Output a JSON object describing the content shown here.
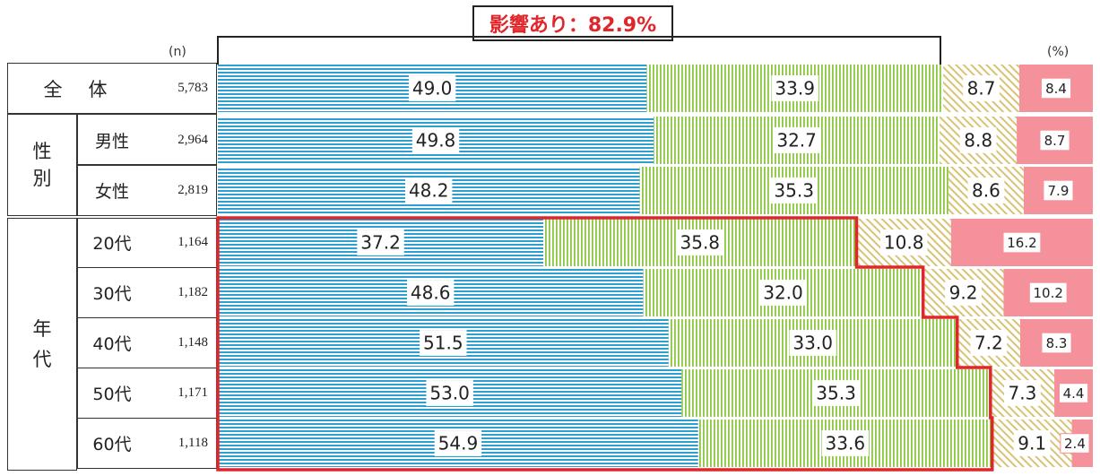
{
  "banner": "影響あり：82.9%",
  "n_header": "(n)",
  "percent_header": "(%)",
  "groups": [
    {
      "label": "全　体",
      "rows": [
        0
      ]
    },
    {
      "label": "性\n別",
      "rows": [
        1,
        2
      ]
    },
    {
      "label": "年\n代",
      "rows": [
        3,
        4,
        5,
        6,
        7
      ]
    }
  ],
  "colors": {
    "seg1": "#2a9fd0",
    "seg2": "#8cc63f",
    "seg3": "#d8c273",
    "seg4": "#f5919a",
    "highlight": "#e0262b"
  },
  "chart_data": {
    "type": "bar",
    "orientation": "horizontal",
    "stacked": true,
    "percent": true,
    "rows": [
      {
        "label": "全　体",
        "n": "5,783",
        "values": [
          49.0,
          33.9,
          8.7,
          8.4
        ]
      },
      {
        "label": "男性",
        "n": "2,964",
        "values": [
          49.8,
          32.7,
          8.8,
          8.7
        ]
      },
      {
        "label": "女性",
        "n": "2,819",
        "values": [
          48.2,
          35.3,
          8.6,
          7.9
        ]
      },
      {
        "label": "20代",
        "n": "1,164",
        "values": [
          37.2,
          35.8,
          10.8,
          16.2
        ]
      },
      {
        "label": "30代",
        "n": "1,182",
        "values": [
          48.6,
          32.0,
          9.2,
          10.2
        ]
      },
      {
        "label": "40代",
        "n": "1,148",
        "values": [
          51.5,
          33.0,
          7.2,
          8.3
        ]
      },
      {
        "label": "50代",
        "n": "1,171",
        "values": [
          53.0,
          35.3,
          7.3,
          4.4
        ]
      },
      {
        "label": "60代",
        "n": "1,118",
        "values": [
          54.9,
          33.6,
          9.1,
          2.4
        ]
      }
    ],
    "xlim": [
      0,
      100
    ]
  }
}
